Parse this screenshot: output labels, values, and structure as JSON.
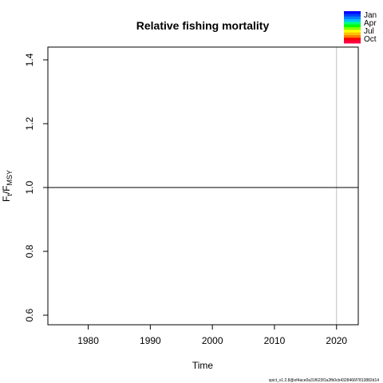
{
  "chart_data": {
    "type": "line",
    "title": "Relative fishing mortality",
    "xlabel": "Time",
    "ylabel_base": "F",
    "ylabel_sub_t": "t",
    "ylabel_sep": "/",
    "ylabel_sub_msy": "MSY",
    "xlim": [
      1973.5,
      2023.5
    ],
    "ylim": [
      0.57,
      1.44
    ],
    "x_ticks": [
      1980,
      1990,
      2000,
      2010,
      2020
    ],
    "y_ticks": [
      0.6,
      0.8,
      1.0,
      1.2,
      1.4
    ],
    "reference_line": {
      "y": 1.0,
      "color": "#000000"
    },
    "vertical_line": {
      "x": 2020,
      "color": "#bebebe"
    },
    "series": [],
    "legend": {
      "position": "top-right",
      "entries": [
        "Jan",
        "Apr",
        "Jul",
        "Oct"
      ],
      "gradient_colors": [
        "#0000ff",
        "#0040ff",
        "#0080ff",
        "#00c0ff",
        "#00ff80",
        "#00ff00",
        "#80ff00",
        "#ffff00",
        "#ffc000",
        "#ff8000",
        "#ff0000",
        "#ff0040"
      ]
    },
    "grid": false
  },
  "footer": {
    "version": "spict_v1.2.8@ef4ace0a31f623f1a2fb0cb4328466f7813882d14"
  }
}
